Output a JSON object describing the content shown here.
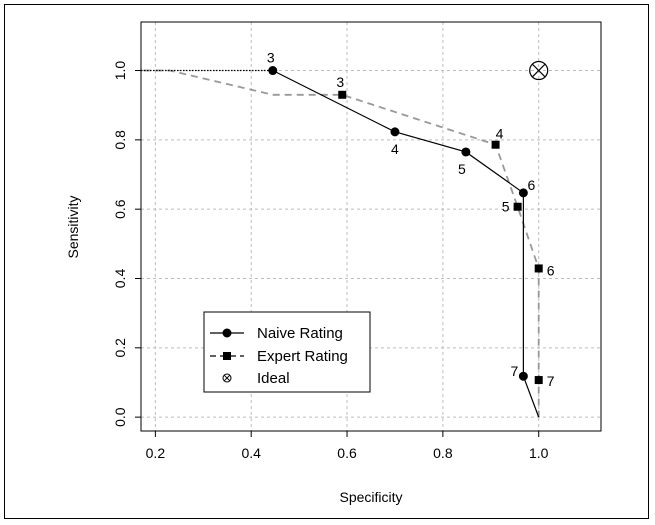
{
  "chart_data": {
    "type": "line",
    "xlabel": "Specificity",
    "ylabel": "Sensitivity",
    "xlim": [
      0.17,
      1.13
    ],
    "ylim": [
      -0.04,
      1.14
    ],
    "xticks": [
      "0.2",
      "0.4",
      "0.6",
      "0.8",
      "1.0"
    ],
    "xtick_values": [
      0.2,
      0.4,
      0.6,
      0.8,
      1.0
    ],
    "yticks": [
      "0.0",
      "0.2",
      "0.4",
      "0.6",
      "0.8",
      "1.0"
    ],
    "ytick_values": [
      0.0,
      0.2,
      0.4,
      0.6,
      0.8,
      1.0
    ],
    "grid": true,
    "legend_position": "bottom-left",
    "series": [
      {
        "name": "Naive Rating",
        "color": "#000000",
        "line": "solid",
        "marker": "circle",
        "x": [
          0.0,
          0.445,
          0.7,
          0.848,
          0.968,
          0.968,
          0.968,
          1.0
        ],
        "y": [
          1.0,
          1.0,
          0.823,
          0.765,
          0.647,
          0.5,
          0.118,
          0.0
        ],
        "markers": [
          {
            "x": 0.445,
            "y": 1.0,
            "label": "3"
          },
          {
            "x": 0.7,
            "y": 0.823,
            "label": "4"
          },
          {
            "x": 0.848,
            "y": 0.765,
            "label": "5"
          },
          {
            "x": 0.968,
            "y": 0.647,
            "label": "6"
          },
          {
            "x": 0.968,
            "y": 0.118,
            "label": "7"
          }
        ],
        "extension": {
          "x": [
            0.17,
            0.445
          ],
          "y": [
            1.0,
            1.0
          ],
          "line": "dotted"
        }
      },
      {
        "name": "Expert Rating",
        "color": "#999999",
        "line": "dashed",
        "marker": "square",
        "x": [
          0.0,
          0.23,
          0.445,
          0.59,
          0.91,
          0.956,
          1.0,
          1.0,
          1.0
        ],
        "y": [
          1.0,
          1.0,
          0.93,
          0.93,
          0.786,
          0.607,
          0.429,
          0.107,
          0.0
        ],
        "markers": [
          {
            "x": 0.59,
            "y": 0.93,
            "label": "3"
          },
          {
            "x": 0.91,
            "y": 0.786,
            "label": "4"
          },
          {
            "x": 0.956,
            "y": 0.607,
            "label": "5"
          },
          {
            "x": 1.0,
            "y": 0.429,
            "label": "6"
          },
          {
            "x": 1.0,
            "y": 0.107,
            "label": "7"
          }
        ]
      }
    ],
    "ideal": {
      "name": "Ideal",
      "x": 1.0,
      "y": 1.0
    }
  },
  "legend": {
    "items": [
      {
        "label": "Naive Rating"
      },
      {
        "label": "Expert Rating"
      },
      {
        "label": "Ideal"
      }
    ]
  }
}
